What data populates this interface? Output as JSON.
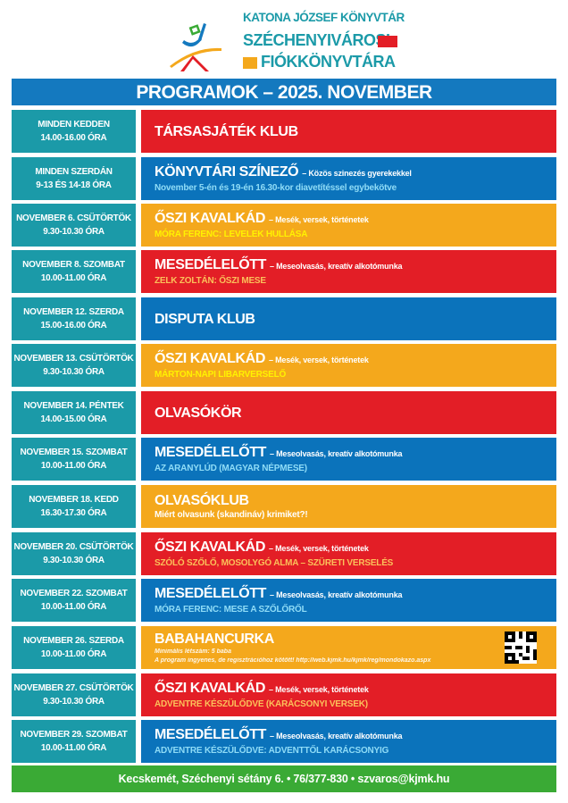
{
  "logo": {
    "line1": "KATONA JÓZSEF KÖNYVTÁR",
    "line2": "SZÉCHENYIVÁROSI",
    "line3": "FIÓKKÖNYVTÁRA"
  },
  "header": {
    "title": "PROGRAMOK – 2025. NOVEMBER"
  },
  "colors": {
    "teal": "#1b9aa8",
    "red": "#e31e26",
    "blue": "#0b73bb",
    "orange": "#f4a81c",
    "green": "#3aaa35",
    "header_blue": "#1479bf"
  },
  "events": [
    {
      "day": "MINDEN KEDDEN",
      "time": "14.00-16.00 ÓRA",
      "color": "red",
      "title": "TÁRSASJÁTÉK KLUB"
    },
    {
      "day": "MINDEN SZERDÁN",
      "time": "9-13 ÉS 14-18 ÓRA",
      "color": "blue",
      "title": "KÖNYVTÁRI SZÍNEZŐ",
      "desc": "– Közös szinezés gyerekekkel",
      "sub": "November 5-én és 19-én 16.30-kor diavetítéssel egybekötve"
    },
    {
      "day": "NOVEMBER 6. CSÜTÖRTÖK",
      "time": "9.30-10.30 ÓRA",
      "color": "orange",
      "title": "ŐSZI KAVALKÁD",
      "desc": "– Mesék, versek, történetek",
      "sub": "MÓRA FERENC: LEVELEK HULLÁSA"
    },
    {
      "day": "NOVEMBER 8. SZOMBAT",
      "time": "10.00-11.00 ÓRA",
      "color": "red",
      "title": "MESEDÉLELŐTT",
      "desc": "– Meseolvasás, kreatív alkotómunka",
      "sub": "ZELK ZOLTÁN: ŐSZI MESE"
    },
    {
      "day": "NOVEMBER 12. SZERDA",
      "time": "15.00-16.00 ÓRA",
      "color": "blue",
      "title": "DISPUTA KLUB"
    },
    {
      "day": "NOVEMBER 13. CSÜTÖRTÖK",
      "time": "9.30-10.30 ÓRA",
      "color": "orange",
      "title": "ŐSZI KAVALKÁD",
      "desc": "– Mesék, versek, történetek",
      "sub": "MÁRTON-NAPI LIBARVERSELŐ"
    },
    {
      "day": "NOVEMBER 14. PÉNTEK",
      "time": "14.00-15.00 ÓRA",
      "color": "red",
      "title": "OLVASÓKÖR"
    },
    {
      "day": "NOVEMBER 15. SZOMBAT",
      "time": "10.00-11.00 ÓRA",
      "color": "blue",
      "title": "MESEDÉLELŐTT",
      "desc": "– Meseolvasás, kreatív alkotómunka",
      "sub": "AZ ARANYLÚD (MAGYAR NÉPMESE)"
    },
    {
      "day": "NOVEMBER 18. KEDD",
      "time": "16.30-17.30 ÓRA",
      "color": "orange",
      "title": "OLVASÓKLUB",
      "sub": "Miért olvasunk (skandináv) krimiket?!",
      "plain": true
    },
    {
      "day": "NOVEMBER 20. CSÜTÖRTÖK",
      "time": "9.30-10.30 ÓRA",
      "color": "red",
      "title": "ŐSZI KAVALKÁD",
      "desc": "– Mesék, versek, történetek",
      "sub": "SZÓLÓ SZŐLŐ, MOSOLYGÓ ALMA – SZÜRETI VERSELÉS"
    },
    {
      "day": "NOVEMBER 22. SZOMBAT",
      "time": "10.00-11.00 ÓRA",
      "color": "blue",
      "title": "MESEDÉLELŐTT",
      "desc": "– Meseolvasás, kreatív alkotómunka",
      "sub": "MÓRA FERENC: MESE A SZŐLŐRŐL"
    },
    {
      "day": "NOVEMBER 26. SZERDA",
      "time": "10.00-11.00 ÓRA",
      "color": "orange",
      "title": "BABAHANCURKA",
      "notes": [
        "Minimális létszám: 5 baba",
        "A program ingyenes, de regisztrációhoz kötött! http://web.kjmk.hu/kjmk/reg/mondokazo.aspx"
      ],
      "qr": true
    },
    {
      "day": "NOVEMBER 27. CSÜTÖRTÖK",
      "time": "9.30-10.30 ÓRA",
      "color": "red",
      "title": "ŐSZI KAVALKÁD",
      "desc": "– Mesék, versek, történetek",
      "sub": "ADVENTRE KÉSZÜLŐDVE (KARÁCSONYI VERSEK)"
    },
    {
      "day": "NOVEMBER 29. SZOMBAT",
      "time": "10.00-11.00 ÓRA",
      "color": "blue",
      "title": "MESEDÉLELŐTT",
      "desc": "– Meseolvasás, kreatív alkotómunka",
      "sub": "ADVENTRE KÉSZÜLŐDVE: ADVENTTŐL KARÁCSONYIG"
    }
  ],
  "footer": {
    "contact": "Kecskemét, Széchenyi sétány 6. • 76/377-830 • szvaros@kjmk.hu"
  }
}
